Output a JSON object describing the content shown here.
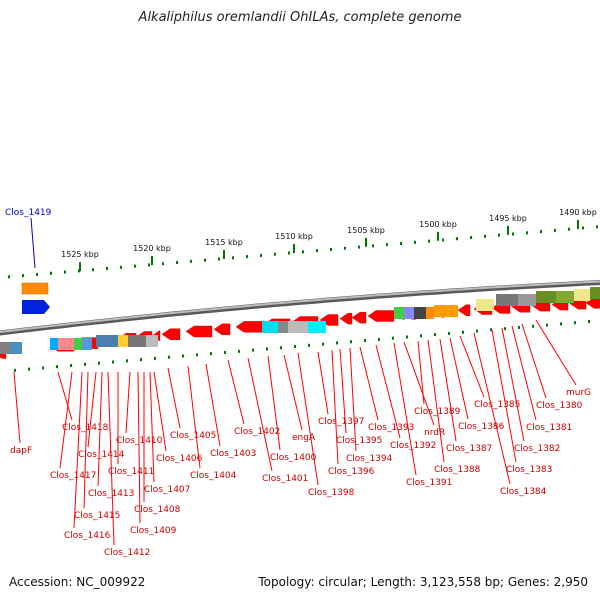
{
  "title": "Alkaliphilus oremlandii OhILAs, complete genome",
  "accession": "Accession: NC_009922",
  "summary": "Topology: circular; Length: 3,123,558 bp; Genes: 2,950",
  "scale_labels": [
    "1525 kbp",
    "1520 kbp",
    "1515 kbp",
    "1510 kbp",
    "1505 kbp",
    "1500 kbp",
    "1495 kbp",
    "1490 kbp"
  ],
  "colors": {
    "backbone": "#808080",
    "gene_forward": "#ff0000",
    "label_red": "#cc0000",
    "label_blue": "#0000cc",
    "tick_green": "#007700"
  },
  "genes_top": [
    {
      "name": "Clos_1419",
      "color": "#0000cc"
    }
  ],
  "genes_bottom": [
    {
      "name": "dapF"
    },
    {
      "name": "Clos_1418"
    },
    {
      "name": "Clos_1417"
    },
    {
      "name": "Clos_1416"
    },
    {
      "name": "Clos_1415"
    },
    {
      "name": "Clos_1414"
    },
    {
      "name": "Clos_1413"
    },
    {
      "name": "Clos_1412"
    },
    {
      "name": "Clos_1411"
    },
    {
      "name": "Clos_1410"
    },
    {
      "name": "Clos_1409"
    },
    {
      "name": "Clos_1408"
    },
    {
      "name": "Clos_1407"
    },
    {
      "name": "Clos_1406"
    },
    {
      "name": "Clos_1405"
    },
    {
      "name": "Clos_1404"
    },
    {
      "name": "Clos_1403"
    },
    {
      "name": "Clos_1402"
    },
    {
      "name": "Clos_1401"
    },
    {
      "name": "Clos_1400"
    },
    {
      "name": "engA"
    },
    {
      "name": "Clos_1398"
    },
    {
      "name": "Clos_1397"
    },
    {
      "name": "Clos_1396"
    },
    {
      "name": "Clos_1395"
    },
    {
      "name": "Clos_1394"
    },
    {
      "name": "Clos_1393"
    },
    {
      "name": "Clos_1392"
    },
    {
      "name": "Clos_1391"
    },
    {
      "name": "nrdR"
    },
    {
      "name": "Clos_1389"
    },
    {
      "name": "Clos_1388"
    },
    {
      "name": "Clos_1387"
    },
    {
      "name": "Clos_1386"
    },
    {
      "name": "Clos_1385"
    },
    {
      "name": "Clos_1384"
    },
    {
      "name": "Clos_1383"
    },
    {
      "name": "Clos_1382"
    },
    {
      "name": "Clos_1381"
    },
    {
      "name": "Clos_1380"
    },
    {
      "name": "murG"
    }
  ]
}
